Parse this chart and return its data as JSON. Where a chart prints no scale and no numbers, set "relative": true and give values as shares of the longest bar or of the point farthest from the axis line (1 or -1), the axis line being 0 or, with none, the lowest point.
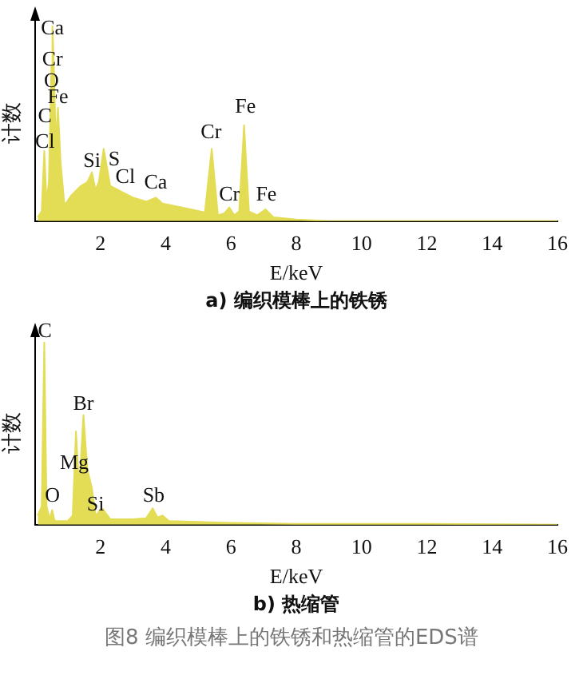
{
  "chart_data": [
    {
      "type": "area",
      "title": "a) 编织模棒上的铁锈",
      "xlabel": "E/keV",
      "ylabel": "计数",
      "relative": true,
      "xlim": [
        0,
        16
      ],
      "xticks": [
        2,
        4,
        6,
        8,
        10,
        12,
        14,
        16
      ],
      "grid": false,
      "legend": false,
      "x": [
        0.08,
        0.2,
        0.28,
        0.35,
        0.42,
        0.5,
        0.53,
        0.58,
        0.63,
        0.7,
        0.78,
        0.9,
        1.1,
        1.4,
        1.6,
        1.74,
        1.85,
        1.95,
        2.1,
        2.3,
        2.65,
        3.0,
        3.4,
        3.7,
        3.9,
        4.5,
        5.2,
        5.41,
        5.6,
        5.8,
        5.95,
        6.1,
        6.25,
        6.4,
        6.55,
        6.8,
        7.06,
        7.3,
        8.0,
        9.0,
        16.0
      ],
      "series": [
        {
          "color": "#e3dc55",
          "values": [
            0.02,
            0.05,
            0.36,
            0.1,
            0.2,
            0.8,
            1.0,
            0.75,
            0.4,
            0.58,
            0.3,
            0.08,
            0.13,
            0.18,
            0.2,
            0.25,
            0.16,
            0.2,
            0.37,
            0.18,
            0.15,
            0.12,
            0.1,
            0.12,
            0.09,
            0.07,
            0.045,
            0.37,
            0.03,
            0.04,
            0.07,
            0.03,
            0.05,
            0.49,
            0.05,
            0.03,
            0.06,
            0.02,
            0.008,
            0,
            0
          ]
        }
      ],
      "annotations": [
        {
          "text": "Ca",
          "x": 0.53,
          "y": 0.93
        },
        {
          "text": "Fe",
          "x": 0.7,
          "y": 0.58
        },
        {
          "text": "Cr",
          "x": 0.53,
          "y": 0.77
        },
        {
          "text": "O",
          "x": 0.5,
          "y": 0.66
        },
        {
          "text": "C",
          "x": 0.3,
          "y": 0.48
        },
        {
          "text": "Cl",
          "x": 0.3,
          "y": 0.35
        },
        {
          "text": "Si",
          "x": 1.74,
          "y": 0.25
        },
        {
          "text": "S",
          "x": 2.42,
          "y": 0.26
        },
        {
          "text": "Cl",
          "x": 2.76,
          "y": 0.17
        },
        {
          "text": "Ca",
          "x": 3.69,
          "y": 0.14
        },
        {
          "text": "Cr",
          "x": 5.39,
          "y": 0.4
        },
        {
          "text": "Fe",
          "x": 6.44,
          "y": 0.53
        },
        {
          "text": "Cr",
          "x": 5.95,
          "y": 0.08
        },
        {
          "text": "Fe",
          "x": 7.08,
          "y": 0.08
        }
      ]
    },
    {
      "type": "area",
      "title": "b) 热缩管",
      "xlabel": "E/keV",
      "ylabel": "计数",
      "relative": true,
      "xlim": [
        0,
        16
      ],
      "xticks": [
        2,
        4,
        6,
        8,
        10,
        12,
        14,
        16
      ],
      "grid": false,
      "legend": false,
      "x": [
        0.08,
        0.2,
        0.28,
        0.35,
        0.45,
        0.52,
        0.6,
        1.0,
        1.15,
        1.25,
        1.35,
        1.48,
        1.6,
        1.74,
        1.85,
        2.05,
        2.3,
        3.0,
        3.4,
        3.6,
        3.75,
        3.9,
        4.1,
        5.0,
        6.0,
        8.0,
        12.0,
        16.0
      ],
      "series": [
        {
          "color": "#e3dc55",
          "values": [
            0.05,
            0.1,
            1.0,
            0.1,
            0.03,
            0.08,
            0.02,
            0.02,
            0.05,
            0.51,
            0.2,
            0.6,
            0.3,
            0.2,
            0.05,
            0.09,
            0.03,
            0.03,
            0.035,
            0.09,
            0.04,
            0.05,
            0.02,
            0.015,
            0.01,
            0.005,
            0.005,
            0
          ]
        }
      ],
      "annotations": [
        {
          "text": "C",
          "x": 0.3,
          "y": 1.0
        },
        {
          "text": "Mg",
          "x": 1.2,
          "y": 0.28
        },
        {
          "text": "Br",
          "x": 1.48,
          "y": 0.6
        },
        {
          "text": "Si",
          "x": 1.85,
          "y": 0.05
        },
        {
          "text": "O",
          "x": 0.53,
          "y": 0.1
        },
        {
          "text": "Sb",
          "x": 3.63,
          "y": 0.1
        },
        "图8 编织模棒上的铁锈和热缩管的EDS谱"
      ]
    }
  ]
}
